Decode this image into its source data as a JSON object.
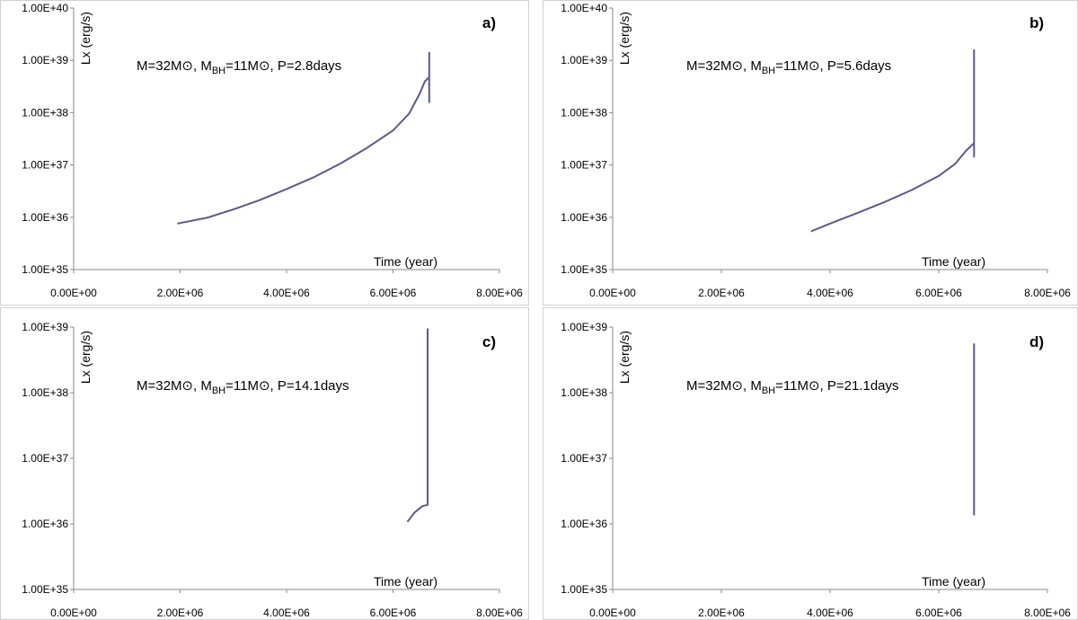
{
  "chart_data": [
    {
      "type": "line",
      "panel_label": "a)",
      "annotation": {
        "mass": "M=32M⊙, M",
        "sub": "BH",
        "rest": "=11M⊙, P=2.8days"
      },
      "xlabel": "Time (year)",
      "ylabel": "Lx (erg/s)",
      "xlim": [
        0,
        8000000
      ],
      "ylim_log10": [
        35,
        40
      ],
      "x_ticks": [
        "0.00E+00",
        "2.00E+06",
        "4.00E+06",
        "6.00E+06",
        "8.00E+06"
      ],
      "y_ticks": [
        "1.00E+35",
        "1.00E+36",
        "1.00E+37",
        "1.00E+38",
        "1.00E+39",
        "1.00E+40"
      ],
      "series": [
        {
          "name": "Lx",
          "color": "#5a5a8a",
          "x": [
            1950000,
            2500000,
            3000000,
            3500000,
            4000000,
            4500000,
            5000000,
            5500000,
            6000000,
            6300000,
            6500000,
            6600000,
            6680000,
            6680000,
            6680000
          ],
          "y_log10": [
            35.88,
            35.99,
            36.15,
            36.33,
            36.54,
            36.76,
            37.02,
            37.32,
            37.66,
            37.98,
            38.36,
            38.6,
            38.68,
            38.2,
            39.16
          ]
        }
      ]
    },
    {
      "type": "line",
      "panel_label": "b)",
      "annotation": {
        "mass": "M=32M⊙, M",
        "sub": "BH",
        "rest": "=11M⊙, P=5.6days"
      },
      "xlabel": "Time (year)",
      "ylabel": "Lx (erg/s)",
      "xlim": [
        0,
        8000000
      ],
      "ylim_log10": [
        35,
        40
      ],
      "x_ticks": [
        "0.00E+00",
        "2.00E+06",
        "4.00E+06",
        "6.00E+06",
        "8.00E+06"
      ],
      "y_ticks": [
        "1.00E+35",
        "1.00E+36",
        "1.00E+37",
        "1.00E+38",
        "1.00E+39",
        "1.00E+40"
      ],
      "series": [
        {
          "name": "Lx",
          "color": "#5a5a8a",
          "x": [
            3650000,
            4000000,
            4500000,
            5000000,
            5500000,
            6000000,
            6300000,
            6500000,
            6650000,
            6650000,
            6650000
          ],
          "y_log10": [
            35.73,
            35.88,
            36.08,
            36.29,
            36.52,
            36.79,
            37.02,
            37.27,
            37.42,
            37.16,
            39.21
          ]
        }
      ]
    },
    {
      "type": "line",
      "panel_label": "c)",
      "annotation": {
        "mass": "M=32M⊙, M",
        "sub": "BH",
        "rest": "=11M⊙, P=14.1days"
      },
      "xlabel": "Time (year)",
      "ylabel": "Lx (erg/s)",
      "xlim": [
        0,
        8000000
      ],
      "ylim_log10": [
        35,
        39
      ],
      "x_ticks": [
        "0.00E+00",
        "2.00E+06",
        "4.00E+06",
        "6.00E+06",
        "8.00E+06"
      ],
      "y_ticks": [
        "1.00E+35",
        "1.00E+36",
        "1.00E+37",
        "1.00E+38",
        "1.00E+39"
      ],
      "series": [
        {
          "name": "Lx",
          "color": "#5a5a8a",
          "x": [
            6270000,
            6400000,
            6550000,
            6650000,
            6650000
          ],
          "y_log10": [
            36.03,
            36.17,
            36.27,
            36.29,
            38.98
          ]
        }
      ]
    },
    {
      "type": "line",
      "panel_label": "d)",
      "annotation": {
        "mass": "M=32M⊙, M",
        "sub": "BH",
        "rest": "=11M⊙, P=21.1days"
      },
      "xlabel": "Time (year)",
      "ylabel": "Lx (erg/s)",
      "xlim": [
        0,
        8000000
      ],
      "ylim_log10": [
        35,
        39
      ],
      "x_ticks": [
        "0.00E+00",
        "2.00E+06",
        "4.00E+06",
        "6.00E+06",
        "8.00E+06"
      ],
      "y_ticks": [
        "1.00E+35",
        "1.00E+36",
        "1.00E+37",
        "1.00E+38",
        "1.00E+39"
      ],
      "series": [
        {
          "name": "Lx",
          "color": "#5a5a8a",
          "x": [
            6650000,
            6650000
          ],
          "y_log10": [
            36.13,
            38.75
          ]
        }
      ]
    }
  ]
}
